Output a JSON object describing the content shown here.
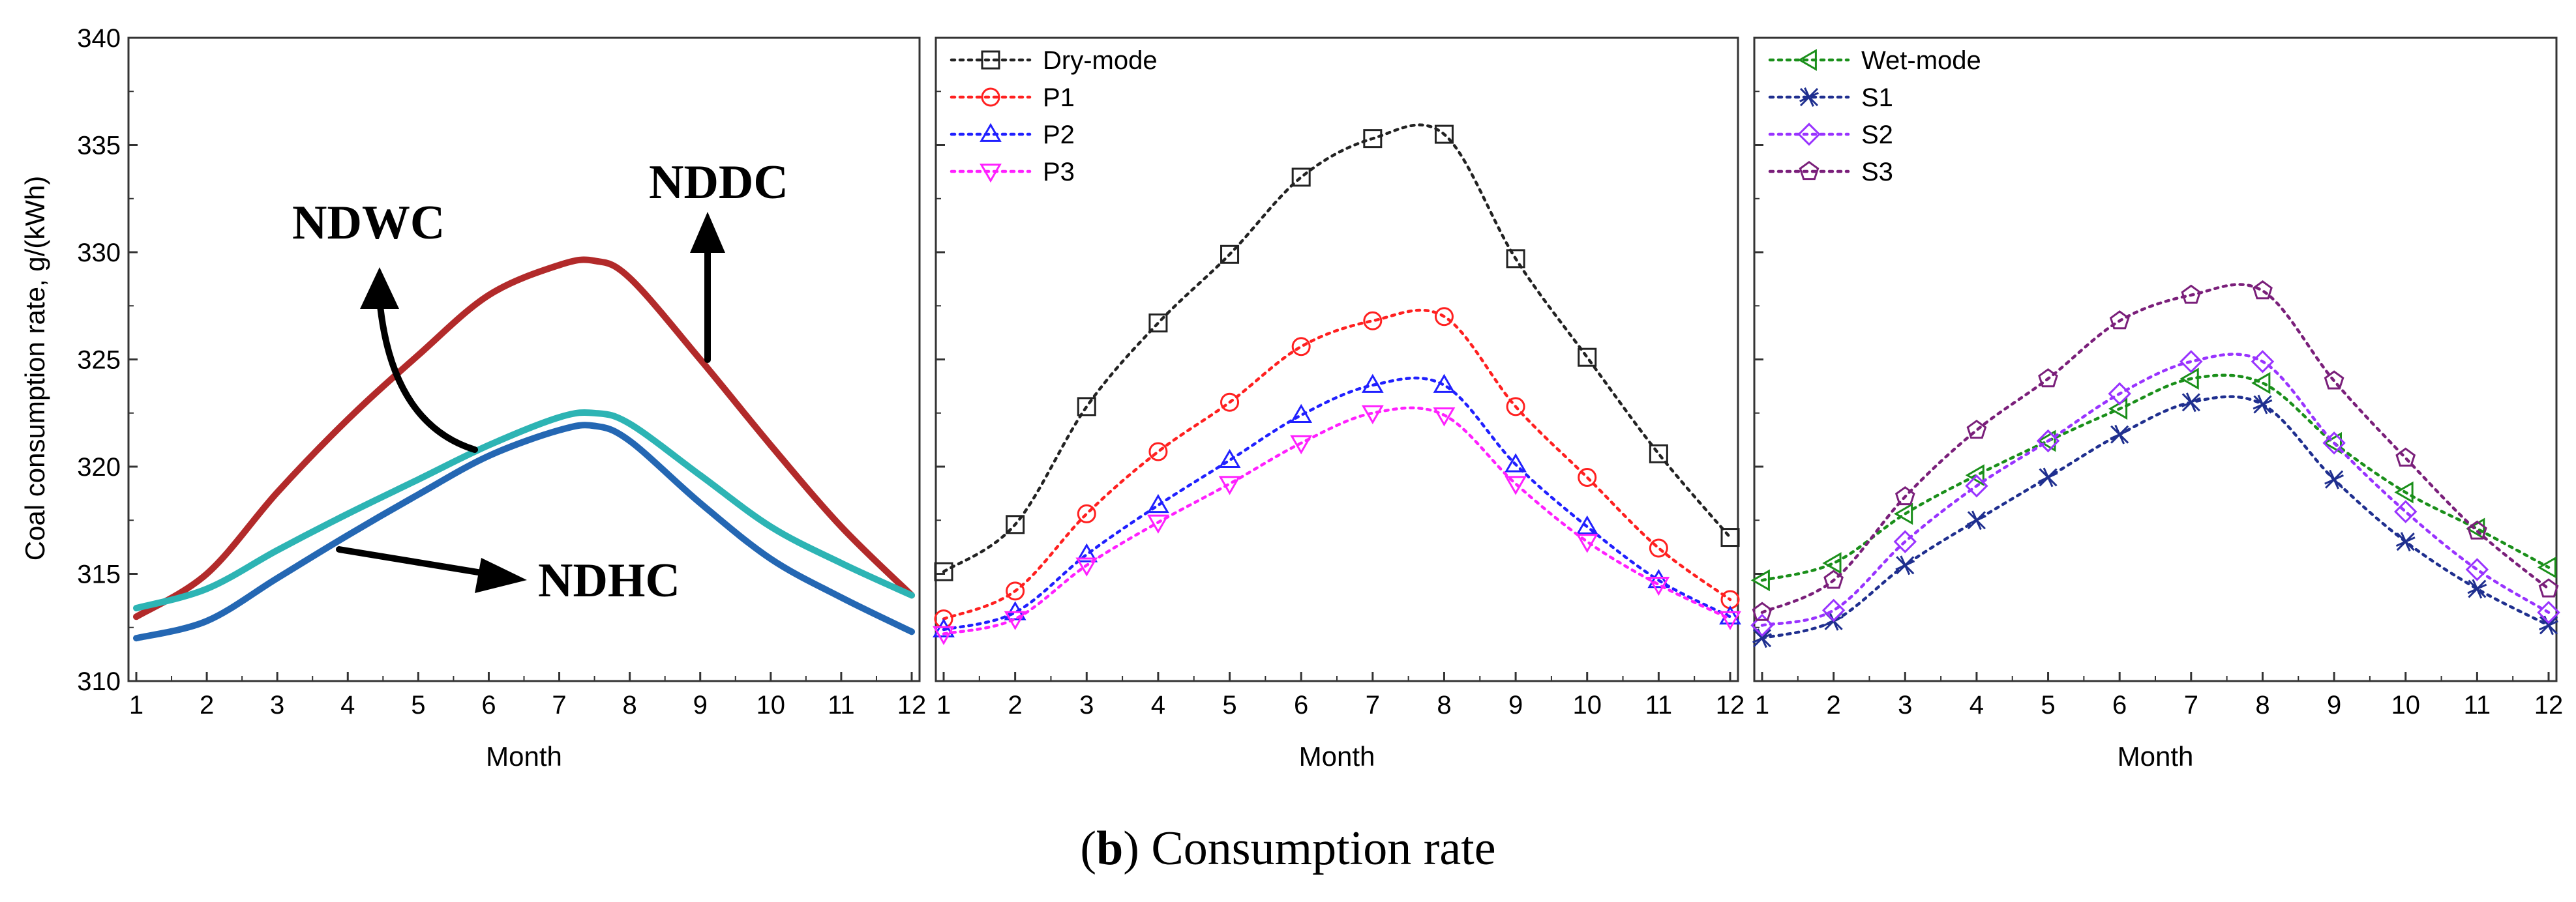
{
  "caption": {
    "open": "(",
    "letter": "b",
    "rest": ") Consumption rate"
  },
  "ylabel": "Coal consumption rate, g/(kWh)",
  "colors": {
    "NDDC": "#b22a2a",
    "NDWC": "#2db4b4",
    "NDHC": "#2467b3"
  },
  "chart_data": [
    {
      "type": "line",
      "xlabel": "Month",
      "ylabel": "Coal consumption rate, g/(kWh)",
      "xlim": [
        1,
        12
      ],
      "ylim": [
        310,
        340
      ],
      "x_ticks": [
        1,
        2,
        3,
        4,
        5,
        6,
        7,
        8,
        9,
        10,
        11,
        12
      ],
      "y_ticks": [
        310,
        315,
        320,
        325,
        330,
        335,
        340
      ],
      "annotations": [
        "NDWC",
        "NDDC",
        "NDHC"
      ],
      "series": [
        {
          "name": "NDDC",
          "color": "#b22a2a",
          "x": [
            1,
            2,
            3,
            4,
            5,
            6,
            7,
            7.5,
            8,
            9,
            10,
            11,
            12
          ],
          "values": [
            313,
            315,
            318.8,
            322.2,
            325.2,
            328,
            329.4,
            329.6,
            328.8,
            325,
            321,
            317.2,
            314
          ]
        },
        {
          "name": "NDWC",
          "color": "#2db4b4",
          "x": [
            1,
            2,
            3,
            4,
            5,
            6,
            7,
            7.5,
            8,
            9,
            10,
            11,
            12
          ],
          "values": [
            313.4,
            314.3,
            316.1,
            317.8,
            319.4,
            321,
            322.3,
            322.5,
            322,
            319.6,
            317.2,
            315.5,
            314
          ]
        },
        {
          "name": "NDHC",
          "color": "#2467b3",
          "x": [
            1,
            2,
            3,
            4,
            5,
            6,
            7,
            7.5,
            8,
            9,
            10,
            11,
            12
          ],
          "values": [
            312,
            312.8,
            314.8,
            316.8,
            318.7,
            320.5,
            321.7,
            321.9,
            321.2,
            318.3,
            315.7,
            313.9,
            312.3
          ]
        }
      ]
    },
    {
      "type": "line",
      "xlabel": "Month",
      "xlim": [
        1,
        12
      ],
      "ylim": [
        310,
        340
      ],
      "x_ticks": [
        1,
        2,
        3,
        4,
        5,
        6,
        7,
        8,
        9,
        10,
        11,
        12
      ],
      "legend": "top-left",
      "series": [
        {
          "name": "Dry-mode",
          "color": "#222222",
          "marker": "square",
          "values": [
            315.1,
            317.3,
            322.8,
            326.7,
            329.9,
            333.5,
            335.3,
            335.5,
            329.7,
            325.1,
            320.6,
            316.7
          ]
        },
        {
          "name": "P1",
          "color": "#ff2020",
          "marker": "circle",
          "values": [
            312.9,
            314.2,
            317.8,
            320.7,
            323,
            325.6,
            326.8,
            327,
            322.8,
            319.5,
            316.2,
            313.8
          ]
        },
        {
          "name": "P2",
          "color": "#2020ff",
          "marker": "triangle-up",
          "values": [
            312.4,
            313.2,
            315.9,
            318.2,
            320.3,
            322.4,
            323.8,
            323.8,
            320.1,
            317.2,
            314.7,
            313
          ]
        },
        {
          "name": "P3",
          "color": "#ff20ff",
          "marker": "triangle-down",
          "values": [
            312.2,
            312.9,
            315.4,
            317.4,
            319.2,
            321.1,
            322.5,
            322.4,
            319.2,
            316.5,
            314.5,
            312.9
          ]
        }
      ]
    },
    {
      "type": "line",
      "xlabel": "Month",
      "xlim": [
        1,
        12
      ],
      "ylim": [
        310,
        340
      ],
      "x_ticks": [
        1,
        2,
        3,
        4,
        5,
        6,
        7,
        8,
        9,
        10,
        11,
        12
      ],
      "legend": "top-left",
      "series": [
        {
          "name": "Wet-mode",
          "color": "#1a8f1a",
          "marker": "triangle-left",
          "values": [
            314.7,
            315.5,
            317.8,
            319.6,
            321.2,
            322.7,
            324.1,
            323.9,
            321.1,
            318.8,
            317.1,
            315.3
          ]
        },
        {
          "name": "S1",
          "color": "#1f2f8f",
          "marker": "x-star",
          "values": [
            312,
            312.8,
            315.4,
            317.5,
            319.5,
            321.5,
            323,
            322.9,
            319.4,
            316.5,
            314.3,
            312.6
          ]
        },
        {
          "name": "S2",
          "color": "#9933ff",
          "marker": "diamond",
          "values": [
            312.6,
            313.3,
            316.5,
            319.1,
            321.2,
            323.4,
            324.9,
            324.9,
            321.1,
            317.9,
            315.2,
            313.2
          ]
        },
        {
          "name": "S3",
          "color": "#7a1f7a",
          "marker": "pentagon",
          "values": [
            313.2,
            314.7,
            318.6,
            321.7,
            324.1,
            326.8,
            328,
            328.2,
            324,
            320.4,
            317,
            314.3
          ]
        }
      ]
    }
  ]
}
